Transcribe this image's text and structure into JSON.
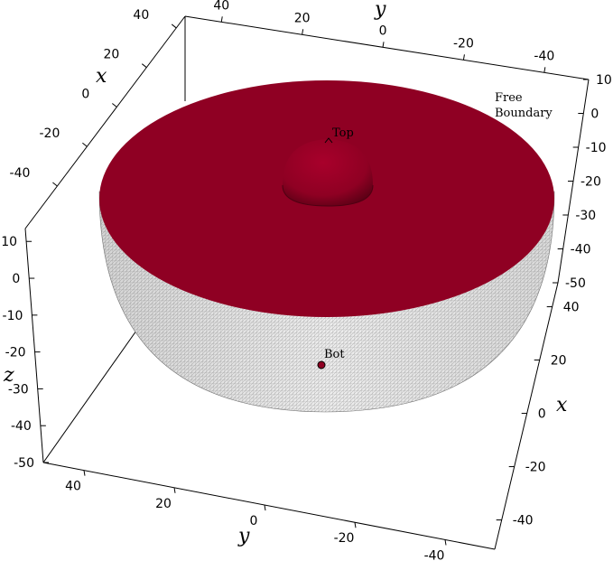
{
  "figure": {
    "colors": {
      "cap": "#8f0023",
      "cap_shade": "#6e001a",
      "mesh_fill": "#ececec",
      "mesh_line": "#9a9a9a",
      "axes": "#000000"
    },
    "annotations": {
      "free_boundary_line1": "Free",
      "free_boundary_line2": "Boundary",
      "top": "Top",
      "bot": "Bot"
    },
    "axes": {
      "top_x": {
        "name": "x",
        "ticks": [
          "40",
          "20",
          "0",
          "-20",
          "-40"
        ]
      },
      "top_y": {
        "name": "y",
        "ticks": [
          "40",
          "20",
          "0",
          "-20",
          "-40"
        ]
      },
      "right_z": {
        "ticks": [
          "10",
          "0",
          "-10",
          "-20",
          "-30",
          "-40",
          "-50"
        ]
      },
      "left_z": {
        "name": "z",
        "ticks": [
          "10",
          "0",
          "-10",
          "-20",
          "-30",
          "-40",
          "-50"
        ]
      },
      "bottom_y": {
        "name": "y",
        "ticks": [
          "40",
          "20",
          "0",
          "-20",
          "-40"
        ]
      },
      "right_x": {
        "name": "x",
        "ticks": [
          "40",
          "20",
          "0",
          "-20",
          "-40"
        ]
      }
    }
  }
}
